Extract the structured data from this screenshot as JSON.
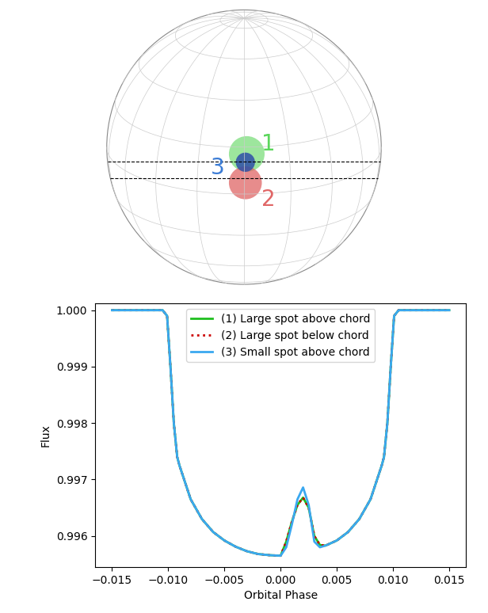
{
  "diagram": {
    "spots": [
      {
        "text": "1",
        "color": "#5cd65c",
        "text_color": "#5cd65c"
      },
      {
        "text": "2",
        "color": "#e06666",
        "text_color": "#e06666"
      },
      {
        "text": "3",
        "color": "#2f4fa8",
        "text_color": "#3a7bd5"
      }
    ]
  },
  "chart_data": {
    "type": "line",
    "x_label": "Orbital Phase",
    "y_label": "Flux",
    "x": [
      -0.015,
      -0.0105,
      -0.0101,
      -0.0098,
      -0.0095,
      -0.0092,
      -0.009,
      -0.008,
      -0.007,
      -0.006,
      -0.005,
      -0.004,
      -0.003,
      -0.002,
      -0.001,
      0.0,
      0.0005,
      0.001,
      0.0015,
      0.002,
      0.0025,
      0.003,
      0.0035,
      0.004,
      0.005,
      0.006,
      0.007,
      0.008,
      0.009,
      0.0092,
      0.0095,
      0.0098,
      0.0101,
      0.0105,
      0.015
    ],
    "series": [
      {
        "name": "(1) Large spot above chord",
        "color": "#1fbf1f",
        "line_style": "solid",
        "values": [
          1.0,
          1.0,
          0.9999,
          0.999,
          0.998,
          0.9974,
          0.99725,
          0.99665,
          0.9963,
          0.99607,
          0.99592,
          0.99581,
          0.99573,
          0.99568,
          0.99566,
          0.99565,
          0.9959,
          0.99625,
          0.99655,
          0.99668,
          0.9965,
          0.996,
          0.99584,
          0.99583,
          0.99592,
          0.99607,
          0.9963,
          0.99665,
          0.99725,
          0.9974,
          0.998,
          0.999,
          0.9999,
          1.0,
          1.0
        ]
      },
      {
        "name": "(2) Large spot below chord",
        "color": "#cc0000",
        "line_style": "dotted",
        "values": [
          1.0,
          1.0,
          0.9999,
          0.999,
          0.998,
          0.9974,
          0.99725,
          0.99665,
          0.9963,
          0.99607,
          0.99592,
          0.99581,
          0.99573,
          0.99568,
          0.99566,
          0.99565,
          0.9959,
          0.99625,
          0.99655,
          0.99668,
          0.9965,
          0.996,
          0.99584,
          0.99583,
          0.99592,
          0.99607,
          0.9963,
          0.99665,
          0.99725,
          0.9974,
          0.998,
          0.999,
          0.9999,
          1.0,
          1.0
        ]
      },
      {
        "name": "(3) Small spot above chord",
        "color": "#3aa8f0",
        "line_style": "solid",
        "values": [
          1.0,
          1.0,
          0.9999,
          0.999,
          0.998,
          0.9974,
          0.99725,
          0.99665,
          0.9963,
          0.99607,
          0.99592,
          0.99581,
          0.99573,
          0.99568,
          0.99566,
          0.99565,
          0.9958,
          0.9962,
          0.99665,
          0.99686,
          0.99655,
          0.9959,
          0.9958,
          0.99583,
          0.99592,
          0.99607,
          0.9963,
          0.99665,
          0.99725,
          0.9974,
          0.998,
          0.999,
          0.9999,
          1.0,
          1.0
        ]
      }
    ],
    "xlim": [
      -0.0165,
      0.0165
    ],
    "xticks": [
      {
        "value": -0.015,
        "label": "−0.015"
      },
      {
        "value": -0.01,
        "label": "−0.010"
      },
      {
        "value": -0.005,
        "label": "−0.005"
      },
      {
        "value": 0.0,
        "label": "0.000"
      },
      {
        "value": 0.005,
        "label": "0.005"
      },
      {
        "value": 0.01,
        "label": "0.010"
      },
      {
        "value": 0.015,
        "label": "0.015"
      }
    ],
    "ylim": [
      0.99545,
      1.00012
    ],
    "yticks": [
      {
        "value": 0.996,
        "label": "0.996"
      },
      {
        "value": 0.997,
        "label": "0.997"
      },
      {
        "value": 0.998,
        "label": "0.998"
      },
      {
        "value": 0.999,
        "label": "0.999"
      },
      {
        "value": 1.0,
        "label": "1.000"
      }
    ],
    "legend": "upper center"
  }
}
